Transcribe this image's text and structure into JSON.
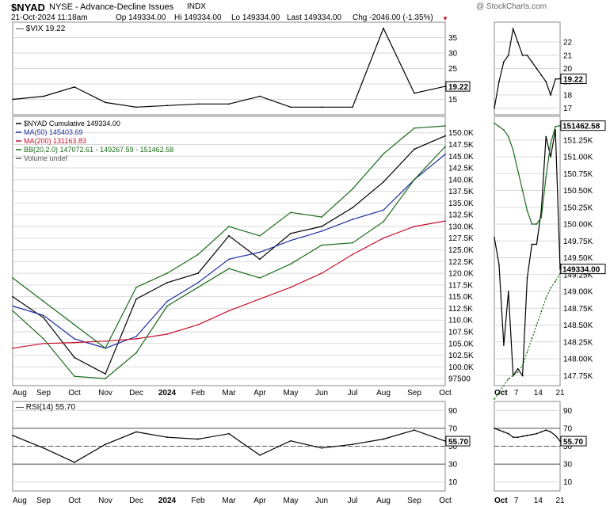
{
  "header": {
    "symbol": "$NYAD",
    "description": "NYSE - Advance-Decline Issues",
    "exchange": "INDX",
    "date": "21-Oct-2024 11:18am",
    "open": "Op 149334.00",
    "high": "Hi 149334.00",
    "low": "Lo 149334.00",
    "last": "Last 149334.00",
    "change": "Chg -2046.00 (-1.35%)",
    "watermark": "@ StockCharts.com"
  },
  "colors": {
    "price": "#000000",
    "price_down": "#c8102e",
    "ma50": "#1f2fa0",
    "ma200": "#c8102e",
    "bb": "#1a6b1a",
    "bb_mid": "#1a6b1a",
    "grid": "#d9d9d9"
  },
  "chart_data": [
    {
      "type": "line",
      "panel": "vix",
      "legend": "$VIX 19.22",
      "ylim": [
        10,
        40
      ],
      "y_ticks": [
        15,
        20,
        25,
        30,
        35
      ],
      "last_label": "19.22",
      "x": [
        "2023-08",
        "2023-09",
        "2023-10",
        "2023-11",
        "2023-12",
        "2024-01",
        "2024-02",
        "2024-03",
        "2024-04",
        "2024-05",
        "2024-06",
        "2024-07",
        "2024-08",
        "2024-09",
        "2024-10"
      ],
      "series": [
        {
          "name": "$VIX",
          "values": [
            15,
            16,
            19,
            14,
            12.5,
            13,
            13.5,
            13.5,
            16,
            12.5,
            12.5,
            12.5,
            38,
            17,
            19.2
          ]
        }
      ]
    },
    {
      "type": "line",
      "panel": "main",
      "legend": [
        "$NYAD Cumulative 149334.00",
        "MA(50) 145403.69",
        "MA(200) 131163.83",
        "BB(20,2.0) 147072.61 - 149267.59 - 151462.58",
        "Volume undef"
      ],
      "ylim": [
        96000,
        153500
      ],
      "y_ticks": [
        "97500",
        "100.0K",
        "102.5K",
        "105.0K",
        "107.5K",
        "110.0K",
        "112.5K",
        "115.0K",
        "117.5K",
        "120.0K",
        "122.5K",
        "125.0K",
        "127.5K",
        "130.0K",
        "132.5K",
        "135.0K",
        "137.5K",
        "140.0K",
        "142.5K",
        "145.0K",
        "147.5K",
        "150.0K"
      ],
      "x_labels": [
        "Aug",
        "Sep",
        "Oct",
        "Nov",
        "Dec",
        "2024",
        "Feb",
        "Mar",
        "Apr",
        "May",
        "Jun",
        "Jul",
        "Aug",
        "Sep",
        "Oct"
      ],
      "x": [
        "2023-08",
        "2023-09",
        "2023-10",
        "2023-11",
        "2023-12",
        "2024-01",
        "2024-02",
        "2024-03",
        "2024-04",
        "2024-05",
        "2024-06",
        "2024-07",
        "2024-08",
        "2024-09",
        "2024-10"
      ],
      "series": [
        {
          "name": "$NYAD Cumulative",
          "values": [
            115000,
            110500,
            102000,
            98500,
            114500,
            118000,
            120000,
            128000,
            123000,
            128500,
            130000,
            134000,
            139500,
            146500,
            149334
          ]
        },
        {
          "name": "MA(50)",
          "values": [
            113000,
            111000,
            106000,
            104000,
            106500,
            114000,
            118000,
            123000,
            124500,
            127000,
            129000,
            131500,
            133500,
            140000,
            145403.69
          ]
        },
        {
          "name": "MA(200)",
          "values": [
            104000,
            105000,
            105200,
            105500,
            106000,
            107000,
            109000,
            112000,
            114500,
            117000,
            120000,
            124000,
            127500,
            130000,
            131163.83
          ]
        },
        {
          "name": "BB upper",
          "values": [
            119000,
            114000,
            109000,
            104000,
            117000,
            120000,
            124000,
            130000,
            128000,
            133000,
            132000,
            138000,
            145500,
            151000,
            151462.58
          ]
        },
        {
          "name": "BB lower",
          "values": [
            112000,
            106000,
            98000,
            97500,
            103000,
            113000,
            117000,
            121000,
            119000,
            122000,
            126000,
            126500,
            131000,
            140000,
            147072.61
          ]
        }
      ],
      "last_labels": [
        "151462.58",
        "149334.00"
      ]
    },
    {
      "type": "line",
      "panel": "rsi",
      "legend": "RSI(14) 55.70",
      "ylim": [
        0,
        100
      ],
      "y_ticks": [
        10,
        30,
        50,
        70,
        90
      ],
      "last_label": "55.70",
      "x_labels": [
        "Aug",
        "Sep",
        "Oct",
        "Nov",
        "Dec",
        "2024",
        "Feb",
        "Mar",
        "Apr",
        "May",
        "Jun",
        "Jul",
        "Aug",
        "Sep",
        "Oct"
      ],
      "x": [
        "2023-08",
        "2023-09",
        "2023-10",
        "2023-11",
        "2023-12",
        "2024-01",
        "2024-02",
        "2024-03",
        "2024-04",
        "2024-05",
        "2024-06",
        "2024-07",
        "2024-08",
        "2024-09",
        "2024-10"
      ],
      "series": [
        {
          "name": "RSI(14)",
          "values": [
            62,
            48,
            32,
            52,
            66,
            60,
            58,
            64,
            40,
            56,
            48,
            52,
            58,
            68,
            55.7
          ]
        }
      ]
    },
    {
      "type": "line",
      "panel": "zoom-vix",
      "ylim": [
        16.5,
        23.5
      ],
      "y_ticks": [
        17,
        18,
        19,
        20,
        21,
        22
      ],
      "last_label": "19.22",
      "x": [
        "Oct 1",
        "Oct 2",
        "Oct 3",
        "Oct 4",
        "Oct 7",
        "Oct 8",
        "Oct 9",
        "Oct 10",
        "Oct 11",
        "Oct 14",
        "Oct 15",
        "Oct 16",
        "Oct 17",
        "Oct 18",
        "Oct 21"
      ],
      "series": [
        {
          "name": "$VIX",
          "values": [
            17,
            19,
            20.5,
            21,
            23,
            22,
            21,
            21,
            20.5,
            20,
            19.5,
            19,
            18,
            19.2,
            19.22
          ]
        }
      ]
    },
    {
      "type": "line",
      "panel": "zoom-main",
      "ylim": [
        147600,
        151600
      ],
      "y_ticks": [
        "147.75K",
        "148.00K",
        "148.25K",
        "148.50K",
        "148.75K",
        "149.00K",
        "149.25K",
        "149.50K",
        "149.75K",
        "150.00K",
        "150.25K",
        "150.50K",
        "150.75K",
        "151.00K",
        "151.25K"
      ],
      "x_labels": [
        "Oct",
        "7",
        "14",
        "21"
      ],
      "x": [
        "Oct 1",
        "Oct 2",
        "Oct 3",
        "Oct 4",
        "Oct 7",
        "Oct 8",
        "Oct 9",
        "Oct 10",
        "Oct 11",
        "Oct 14",
        "Oct 15",
        "Oct 16",
        "Oct 17",
        "Oct 18",
        "Oct 21"
      ],
      "series": [
        {
          "name": "$NYAD Cumulative",
          "values": [
            149800,
            149400,
            148200,
            149000,
            147750,
            147850,
            147750,
            149200,
            149700,
            149700,
            150200,
            151300,
            151000,
            151400,
            149334
          ]
        },
        {
          "name": "BB upper",
          "values": [
            151500,
            151450,
            151400,
            151300,
            151100,
            150800,
            150500,
            150200,
            150000,
            150000,
            150100,
            150700,
            151200,
            151450,
            151462.58
          ]
        },
        {
          "name": "BB middle",
          "values": [
            147400,
            147500,
            147600,
            147700,
            147750,
            147800,
            147900,
            148100,
            148300,
            148500,
            148700,
            148900,
            149050,
            149150,
            149267.59
          ]
        }
      ],
      "last_labels": [
        "151462.58",
        "149334.00"
      ]
    },
    {
      "type": "line",
      "panel": "zoom-rsi",
      "ylim": [
        0,
        100
      ],
      "y_ticks": [
        10,
        30,
        50,
        70,
        90
      ],
      "last_label": "55.70",
      "x_labels": [
        "Oct",
        "7",
        "14",
        "21"
      ],
      "x": [
        "Oct 1",
        "Oct 2",
        "Oct 3",
        "Oct 4",
        "Oct 7",
        "Oct 8",
        "Oct 9",
        "Oct 10",
        "Oct 11",
        "Oct 14",
        "Oct 15",
        "Oct 16",
        "Oct 17",
        "Oct 18",
        "Oct 21"
      ],
      "series": [
        {
          "name": "RSI(14)",
          "values": [
            70,
            68,
            66,
            64,
            60,
            60,
            61,
            62,
            63,
            64,
            66,
            68,
            66,
            62,
            55.7
          ]
        }
      ]
    }
  ]
}
